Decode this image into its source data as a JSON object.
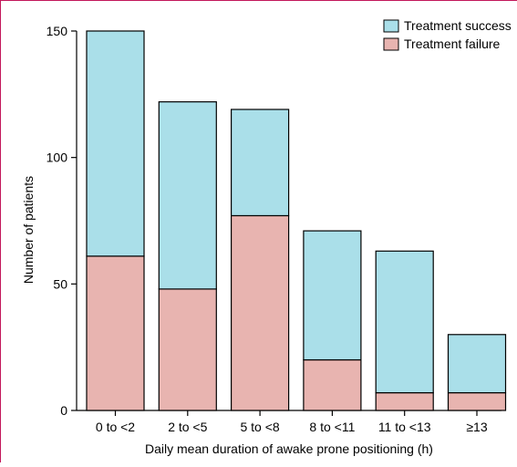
{
  "chart_data": {
    "type": "bar",
    "stacked": true,
    "categories": [
      "0 to <2",
      "2 to <5",
      "5 to <8",
      "8 to <11",
      "11 to <13",
      "≥13"
    ],
    "series": [
      {
        "name": "Treatment failure",
        "values": [
          61,
          48,
          77,
          20,
          7,
          7
        ],
        "color": "#e8b4b0"
      },
      {
        "name": "Treatment success",
        "values": [
          89,
          74,
          42,
          51,
          56,
          23
        ],
        "color": "#aadfe9"
      }
    ],
    "totals": [
      150,
      122,
      119,
      71,
      63,
      30
    ],
    "xlabel": "Daily mean duration of awake prone positioning (h)",
    "ylabel": "Number of patients",
    "ylim": [
      0,
      150
    ],
    "yticks": [
      0,
      50,
      100,
      150
    ],
    "legend": {
      "position": "top-right",
      "order": [
        "Treatment success",
        "Treatment failure"
      ]
    },
    "grid": false
  }
}
